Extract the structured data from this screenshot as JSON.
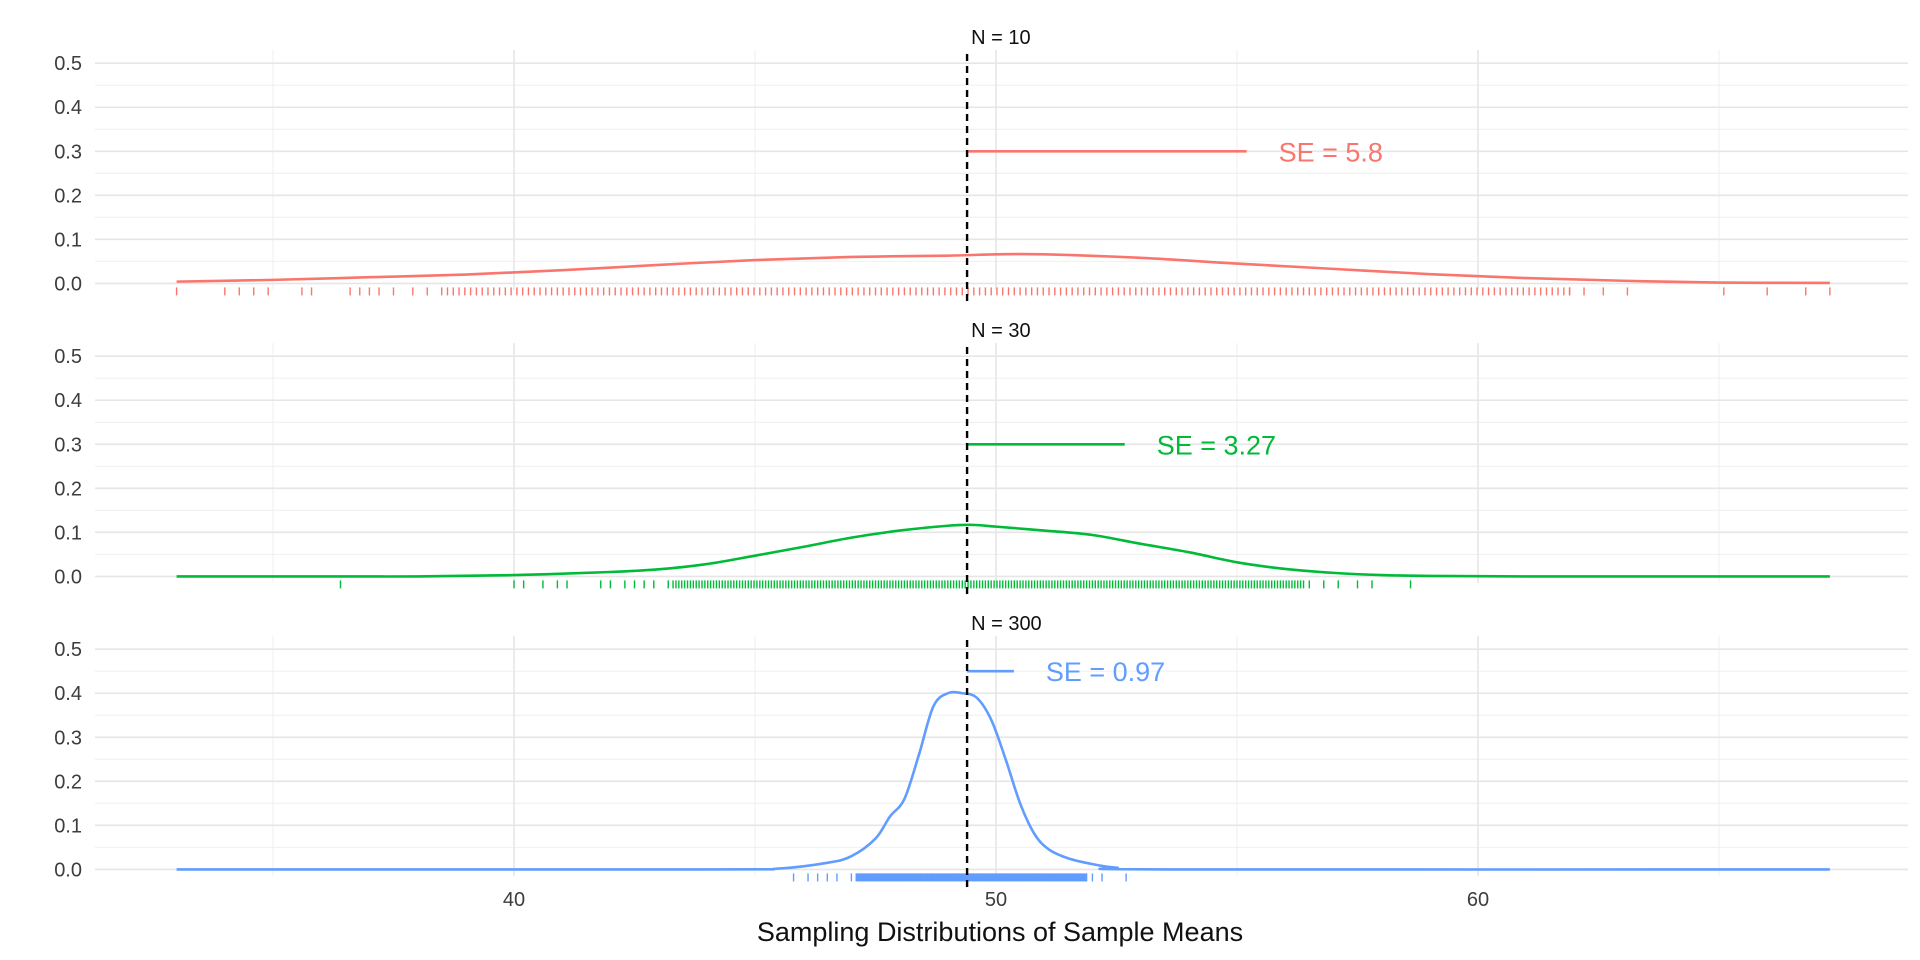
{
  "chart_data": {
    "type": "area",
    "xlabel": "Sampling Distributions of Sample Means",
    "xlim": [
      31.5,
      69.5
    ],
    "x_ticks": [
      40,
      50,
      60
    ],
    "x_minor_ticks": [
      35,
      45,
      55,
      65
    ],
    "y_ticks": [
      0.0,
      0.1,
      0.2,
      0.3,
      0.4,
      0.5
    ],
    "y_tick_labels": [
      "0.0",
      "0.1",
      "0.2",
      "0.3",
      "0.4",
      "0.5"
    ],
    "ylim": [
      -0.015,
      0.53
    ],
    "grid": true,
    "reference_line": {
      "x": 49.4,
      "style": "dashed",
      "color": "#000000"
    },
    "panels": [
      {
        "title": "N = 10",
        "color": "#f8766d",
        "se": 5.8,
        "se_label": "SE = 5.8",
        "se_y": 0.3,
        "density_x": [
          33,
          35,
          37,
          39,
          41,
          43,
          45,
          47,
          49,
          50,
          51,
          53,
          55,
          57,
          59,
          61,
          63,
          65,
          67.3
        ],
        "density_y": [
          0.004,
          0.008,
          0.014,
          0.02,
          0.03,
          0.042,
          0.053,
          0.06,
          0.063,
          0.066,
          0.066,
          0.058,
          0.045,
          0.033,
          0.021,
          0.012,
          0.006,
          0.002,
          0.001
        ],
        "rug": [
          33.0,
          34.0,
          34.3,
          34.6,
          34.9,
          35.6,
          35.8,
          36.6,
          36.8,
          37.0,
          37.2,
          37.5,
          37.9,
          38.2,
          65.1,
          66.0,
          66.8,
          67.3,
          62.6,
          63.1,
          61.9,
          62.2
        ]
      },
      {
        "title": "N = 30",
        "color": "#00ba38",
        "se": 3.27,
        "se_label": "SE = 3.27",
        "se_y": 0.3,
        "density_x": [
          33,
          36,
          38,
          40,
          42,
          43,
          44,
          45,
          46,
          47,
          48,
          49,
          49.5,
          50,
          51,
          52,
          53,
          54,
          55,
          56,
          57,
          58,
          59,
          61,
          64,
          67.3
        ],
        "density_y": [
          0.0,
          0.0,
          0.0,
          0.003,
          0.01,
          0.016,
          0.028,
          0.047,
          0.067,
          0.088,
          0.104,
          0.115,
          0.117,
          0.113,
          0.104,
          0.094,
          0.074,
          0.055,
          0.032,
          0.017,
          0.008,
          0.003,
          0.001,
          0.0,
          0.0,
          0.0
        ],
        "rug": [
          36.4,
          40.0,
          40.2,
          40.6,
          40.9,
          41.1,
          41.8,
          42.0,
          42.3,
          42.5,
          42.7,
          42.9,
          43.2,
          56.5,
          56.8,
          57.1,
          57.5,
          57.8,
          58.6
        ]
      },
      {
        "title": "N = 300",
        "color": "#619cff",
        "se": 0.97,
        "se_label": "SE = 0.97",
        "se_y": 0.45,
        "density_x": [
          33,
          44,
          45.5,
          46.5,
          47,
          47.5,
          47.8,
          48.1,
          48.4,
          48.7,
          49.0,
          49.3,
          49.6,
          49.9,
          50.2,
          50.5,
          50.8,
          51.1,
          51.5,
          52.0,
          52.5,
          53.5,
          67.3
        ],
        "density_y": [
          0.0,
          0.0,
          0.002,
          0.015,
          0.03,
          0.07,
          0.12,
          0.16,
          0.26,
          0.37,
          0.4,
          0.4,
          0.39,
          0.34,
          0.25,
          0.15,
          0.08,
          0.045,
          0.025,
          0.012,
          0.004,
          0.0,
          0.0
        ],
        "rug": [
          45.8,
          46.1,
          46.3,
          46.5,
          46.7,
          47.0,
          52.0,
          52.2,
          52.7
        ]
      }
    ]
  }
}
